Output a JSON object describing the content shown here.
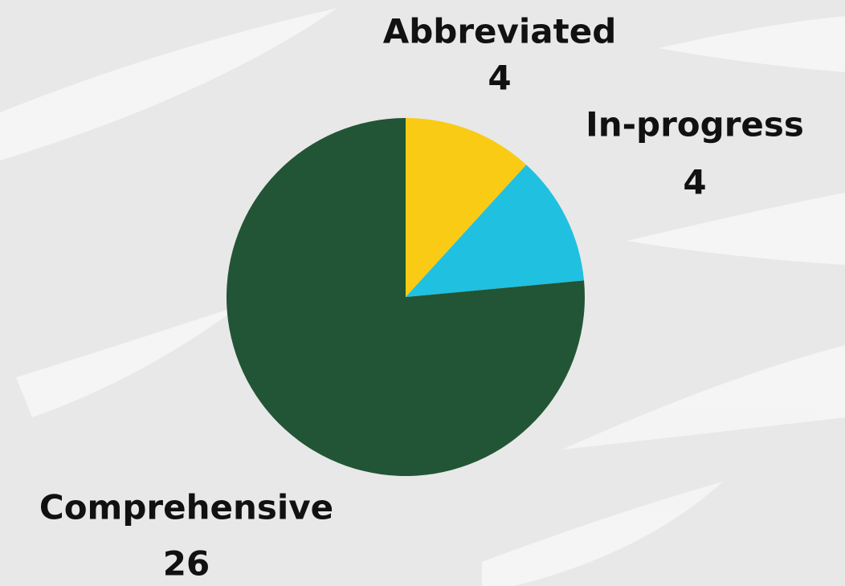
{
  "chart_data": {
    "type": "pie",
    "categories": [
      "Abbreviated",
      "In-progress",
      "Comprehensive"
    ],
    "values": [
      4,
      4,
      26
    ],
    "colors": [
      "#f9cb14",
      "#20c0e0",
      "#225535"
    ]
  }
}
